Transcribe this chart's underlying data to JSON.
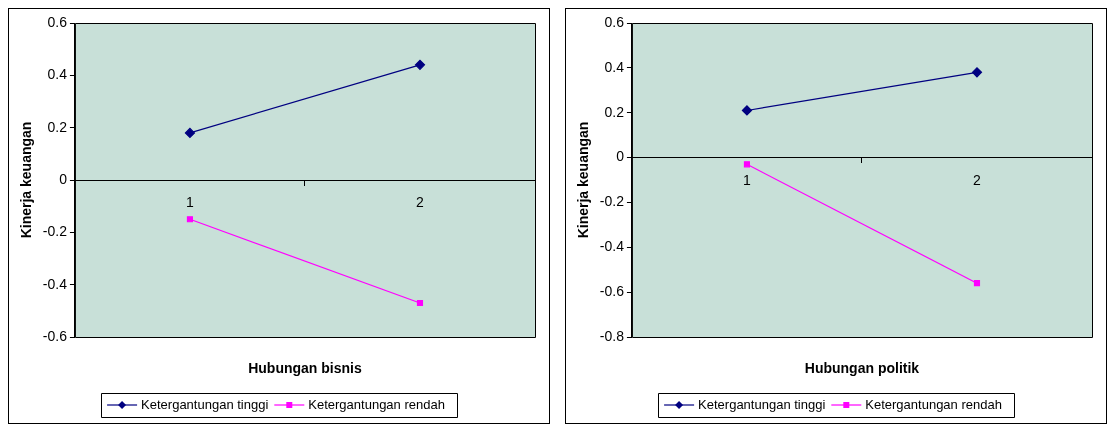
{
  "chart_data": [
    {
      "type": "line",
      "categories": [
        "1",
        "2"
      ],
      "xlabel": "Hubungan bisnis",
      "ylabel": "Kinerja keuangan",
      "ylim": [
        -0.6,
        0.6
      ],
      "yticks": [
        -0.6,
        -0.4,
        -0.2,
        0,
        0.2,
        0.4,
        0.6
      ],
      "grid": false,
      "legend": "bottom",
      "series": [
        {
          "name": "Ketergantungan tinggi",
          "color": "#000080",
          "marker": "diamond",
          "values": [
            0.18,
            0.44
          ]
        },
        {
          "name": "Ketergantungan rendah",
          "color": "#ff00ff",
          "marker": "square",
          "values": [
            -0.15,
            -0.47
          ]
        }
      ]
    },
    {
      "type": "line",
      "categories": [
        "1",
        "2"
      ],
      "xlabel": "Hubungan politik",
      "ylabel": "Kinerja keuangan",
      "ylim": [
        -0.8,
        0.6
      ],
      "yticks": [
        -0.8,
        -0.6,
        -0.4,
        -0.2,
        0,
        0.2,
        0.4,
        0.6
      ],
      "grid": false,
      "legend": "bottom",
      "series": [
        {
          "name": "Ketergantungan tinggi",
          "color": "#000080",
          "marker": "diamond",
          "values": [
            0.21,
            0.38
          ]
        },
        {
          "name": "Ketergantungan rendah",
          "color": "#ff00ff",
          "marker": "square",
          "values": [
            -0.03,
            -0.56
          ]
        }
      ]
    }
  ]
}
